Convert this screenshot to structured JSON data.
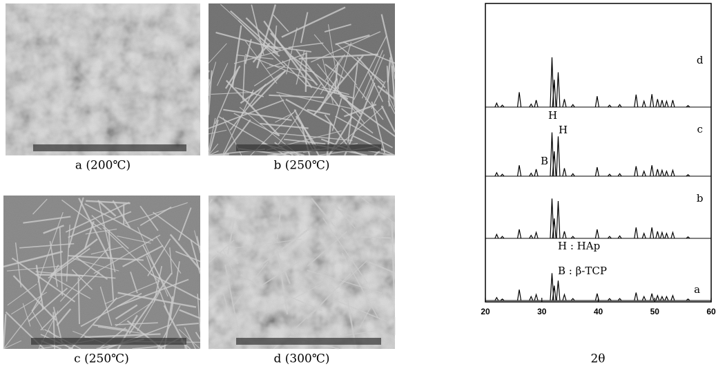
{
  "figure": {
    "panels": [
      {
        "label": "a (200℃)"
      },
      {
        "label": "b (250℃)"
      },
      {
        "label": "c (250℃)"
      },
      {
        "label": "d (300℃)"
      }
    ]
  },
  "chart_data": {
    "type": "xrd",
    "xlabel": "2θ",
    "xlim": [
      20,
      60
    ],
    "xticks": [
      20,
      30,
      40,
      50,
      60
    ],
    "color": "#000000",
    "series": [
      {
        "name": "a",
        "x": [
          22,
          23,
          26,
          28.1,
          29,
          31.8,
          32.2,
          32.9,
          34,
          35.5,
          39.8,
          42,
          43.8,
          46.7,
          48.1,
          49.5,
          50.5,
          51.3,
          52.1,
          53.2,
          55.9
        ],
        "values": [
          6,
          3,
          22,
          8,
          12,
          55,
          30,
          40,
          12,
          4,
          14,
          4,
          4,
          16,
          8,
          14,
          10,
          8,
          8,
          10,
          3
        ]
      },
      {
        "name": "b",
        "x": [
          22,
          23,
          26,
          28.1,
          29,
          31.8,
          32.2,
          32.9,
          34,
          35.5,
          39.8,
          42,
          43.8,
          46.7,
          48.1,
          49.5,
          50.5,
          51.3,
          52.1,
          53.2,
          55.9
        ],
        "values": [
          8,
          4,
          18,
          6,
          12,
          80,
          40,
          75,
          14,
          4,
          18,
          4,
          5,
          22,
          10,
          22,
          14,
          12,
          10,
          12,
          3
        ]
      },
      {
        "name": "c",
        "x": [
          22,
          23,
          26,
          28.1,
          29,
          31.8,
          32.2,
          32.9,
          34,
          35.5,
          39.8,
          42,
          43.8,
          46.7,
          48.1,
          49.5,
          50.5,
          51.3,
          52.1,
          53.2,
          55.9
        ],
        "values": [
          7,
          4,
          22,
          6,
          14,
          88,
          50,
          80,
          16,
          5,
          18,
          4,
          5,
          20,
          10,
          22,
          14,
          12,
          10,
          12,
          3
        ]
      },
      {
        "name": "d",
        "x": [
          22,
          23,
          26,
          28.1,
          29,
          31.8,
          32.2,
          32.9,
          34,
          35.5,
          39.8,
          42,
          43.8,
          46.7,
          48.1,
          49.5,
          50.5,
          51.3,
          52.1,
          53.2,
          55.9
        ],
        "values": [
          8,
          4,
          30,
          6,
          14,
          100,
          55,
          70,
          16,
          5,
          22,
          4,
          5,
          25,
          12,
          26,
          16,
          14,
          12,
          14,
          3
        ]
      }
    ],
    "annotations": [
      "H",
      "H",
      "B",
      "H : HAp",
      "B : β-TCP"
    ]
  }
}
